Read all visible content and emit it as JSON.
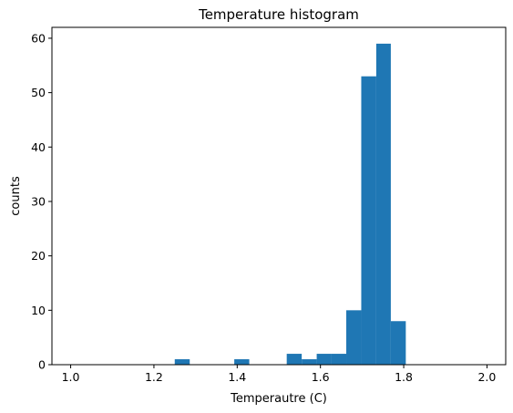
{
  "chart_data": {
    "type": "bar",
    "title": "Temperature histogram",
    "xlabel": "Temperautre (C)",
    "ylabel": "counts",
    "xlim": [
      0.955,
      2.045
    ],
    "ylim": [
      0,
      62
    ],
    "xticks": [
      1.0,
      1.2,
      1.4,
      1.6,
      1.8,
      2.0
    ],
    "xtick_labels": [
      "1.0",
      "1.2",
      "1.4",
      "1.6",
      "1.8",
      "2.0"
    ],
    "yticks": [
      0,
      10,
      20,
      30,
      40,
      50,
      60
    ],
    "ytick_labels": [
      "0",
      "10",
      "20",
      "30",
      "40",
      "50",
      "60"
    ],
    "grid": false,
    "bar_color": "#1f77b4",
    "bins": [
      {
        "x0": 1.25,
        "x1": 1.286,
        "count": 1
      },
      {
        "x0": 1.393,
        "x1": 1.429,
        "count": 1
      },
      {
        "x0": 1.519,
        "x1": 1.555,
        "count": 2
      },
      {
        "x0": 1.555,
        "x1": 1.591,
        "count": 1
      },
      {
        "x0": 1.591,
        "x1": 1.626,
        "count": 2
      },
      {
        "x0": 1.626,
        "x1": 1.662,
        "count": 2
      },
      {
        "x0": 1.662,
        "x1": 1.698,
        "count": 10
      },
      {
        "x0": 1.698,
        "x1": 1.734,
        "count": 53
      },
      {
        "x0": 1.734,
        "x1": 1.769,
        "count": 59
      },
      {
        "x0": 1.769,
        "x1": 1.805,
        "count": 8
      }
    ]
  }
}
